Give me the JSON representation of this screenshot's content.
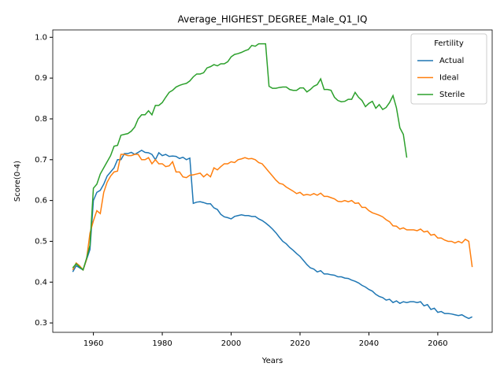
{
  "chart_data": {
    "type": "line",
    "title": "Average_HIGHEST_DEGREE_Male_Q1_IQ",
    "x_label": "Years",
    "y_label": "Score(0-4)",
    "x": [
      1954,
      1955,
      1956,
      1957,
      1958,
      1959,
      1960,
      1961,
      1962,
      1963,
      1964,
      1965,
      1966,
      1967,
      1968,
      1969,
      1970,
      1971,
      1972,
      1973,
      1974,
      1975,
      1976,
      1977,
      1978,
      1979,
      1980,
      1981,
      1982,
      1983,
      1984,
      1985,
      1986,
      1987,
      1988,
      1989,
      1990,
      1991,
      1992,
      1993,
      1994,
      1995,
      1996,
      1997,
      1998,
      1999,
      2000,
      2001,
      2002,
      2003,
      2004,
      2005,
      2006,
      2007,
      2008,
      2009,
      2010,
      2011,
      2012,
      2013,
      2014,
      2015,
      2016,
      2017,
      2018,
      2019,
      2020,
      2021,
      2022,
      2023,
      2024,
      2025,
      2026,
      2027,
      2028,
      2029,
      2030,
      2031,
      2032,
      2033,
      2034,
      2035,
      2036,
      2037,
      2038,
      2039,
      2040,
      2041,
      2042,
      2043,
      2044,
      2045,
      2046,
      2047,
      2048,
      2049,
      2050,
      2051,
      2052,
      2053,
      2054,
      2055,
      2056,
      2057,
      2058,
      2059,
      2060,
      2061,
      2062,
      2063,
      2064,
      2065,
      2066,
      2067,
      2068,
      2069,
      2070
    ],
    "series": [
      {
        "name": "Actual",
        "color": "#1f77b4",
        "values": [
          0.425,
          0.44,
          0.435,
          0.43,
          0.455,
          0.48,
          0.6,
          0.62,
          0.625,
          0.64,
          0.66,
          0.67,
          0.68,
          0.7,
          0.7,
          0.715,
          0.715,
          0.718,
          0.713,
          0.718,
          0.723,
          0.718,
          0.717,
          0.713,
          0.7,
          0.717,
          0.71,
          0.713,
          0.708,
          0.709,
          0.708,
          0.703,
          0.706,
          0.7,
          0.704,
          0.593,
          0.596,
          0.597,
          0.595,
          0.592,
          0.592,
          0.582,
          0.578,
          0.566,
          0.56,
          0.558,
          0.555,
          0.561,
          0.563,
          0.565,
          0.563,
          0.563,
          0.561,
          0.561,
          0.555,
          0.551,
          0.545,
          0.538,
          0.53,
          0.521,
          0.51,
          0.5,
          0.494,
          0.485,
          0.478,
          0.47,
          0.463,
          0.453,
          0.443,
          0.435,
          0.432,
          0.425,
          0.428,
          0.42,
          0.42,
          0.418,
          0.417,
          0.413,
          0.413,
          0.41,
          0.409,
          0.405,
          0.402,
          0.398,
          0.392,
          0.388,
          0.382,
          0.378,
          0.37,
          0.365,
          0.362,
          0.356,
          0.358,
          0.35,
          0.354,
          0.348,
          0.352,
          0.35,
          0.352,
          0.352,
          0.35,
          0.352,
          0.342,
          0.345,
          0.333,
          0.336,
          0.326,
          0.328,
          0.323,
          0.323,
          0.322,
          0.32,
          0.318,
          0.32,
          0.315,
          0.311,
          0.315
        ]
      },
      {
        "name": "Ideal",
        "color": "#ff7f0e",
        "values": [
          0.43,
          0.447,
          0.44,
          0.43,
          0.455,
          0.52,
          0.55,
          0.575,
          0.568,
          0.62,
          0.645,
          0.66,
          0.67,
          0.672,
          0.713,
          0.713,
          0.71,
          0.71,
          0.713,
          0.713,
          0.7,
          0.7,
          0.705,
          0.69,
          0.7,
          0.69,
          0.69,
          0.683,
          0.685,
          0.695,
          0.67,
          0.67,
          0.658,
          0.656,
          0.662,
          0.663,
          0.665,
          0.667,
          0.658,
          0.665,
          0.658,
          0.68,
          0.675,
          0.683,
          0.69,
          0.69,
          0.695,
          0.693,
          0.7,
          0.702,
          0.705,
          0.702,
          0.703,
          0.7,
          0.693,
          0.69,
          0.68,
          0.67,
          0.66,
          0.65,
          0.642,
          0.64,
          0.633,
          0.628,
          0.623,
          0.617,
          0.62,
          0.613,
          0.615,
          0.613,
          0.617,
          0.613,
          0.618,
          0.61,
          0.61,
          0.607,
          0.604,
          0.598,
          0.597,
          0.6,
          0.597,
          0.6,
          0.593,
          0.594,
          0.583,
          0.583,
          0.575,
          0.57,
          0.567,
          0.564,
          0.56,
          0.553,
          0.548,
          0.538,
          0.537,
          0.53,
          0.533,
          0.528,
          0.528,
          0.528,
          0.526,
          0.53,
          0.523,
          0.525,
          0.515,
          0.517,
          0.508,
          0.508,
          0.503,
          0.5,
          0.5,
          0.496,
          0.5,
          0.496,
          0.505,
          0.5,
          0.437
        ]
      },
      {
        "name": "Sterile",
        "color": "#2ca02c",
        "values": [
          0.435,
          0.445,
          0.437,
          0.43,
          0.458,
          0.49,
          0.63,
          0.64,
          0.665,
          0.68,
          0.695,
          0.71,
          0.733,
          0.735,
          0.76,
          0.762,
          0.764,
          0.77,
          0.78,
          0.8,
          0.81,
          0.81,
          0.82,
          0.81,
          0.833,
          0.833,
          0.84,
          0.853,
          0.865,
          0.87,
          0.878,
          0.882,
          0.885,
          0.887,
          0.893,
          0.903,
          0.91,
          0.91,
          0.913,
          0.925,
          0.928,
          0.933,
          0.93,
          0.935,
          0.935,
          0.94,
          0.952,
          0.958,
          0.96,
          0.963,
          0.967,
          0.97,
          0.98,
          0.978,
          0.984,
          0.984,
          0.984,
          0.88,
          0.875,
          0.875,
          0.877,
          0.878,
          0.878,
          0.872,
          0.87,
          0.87,
          0.876,
          0.876,
          0.866,
          0.872,
          0.88,
          0.884,
          0.898,
          0.872,
          0.872,
          0.87,
          0.853,
          0.845,
          0.842,
          0.843,
          0.848,
          0.848,
          0.865,
          0.853,
          0.845,
          0.83,
          0.838,
          0.843,
          0.826,
          0.835,
          0.823,
          0.828,
          0.84,
          0.857,
          0.827,
          0.778,
          0.762,
          0.705,
          null,
          null,
          null,
          null,
          null,
          null,
          null,
          null,
          null,
          null,
          null,
          null,
          null,
          null,
          null,
          null,
          null,
          null,
          null
        ]
      }
    ],
    "xlim": [
      1948.2,
      2075.8
    ],
    "ylim": [
      0.277,
      1.018
    ],
    "xticks": [
      1960,
      1980,
      2000,
      2020,
      2040,
      2060
    ],
    "yticks": [
      {
        "value": 0.3,
        "label": "0.3"
      },
      {
        "value": 0.4,
        "label": "0.4"
      },
      {
        "value": 0.5,
        "label": "0.5"
      },
      {
        "value": 0.6,
        "label": "0.6"
      },
      {
        "value": 0.7,
        "label": "0.7"
      },
      {
        "value": 0.8,
        "label": "0.8"
      },
      {
        "value": 0.9,
        "label": "0.9"
      },
      {
        "value": 1.0,
        "label": "1.0"
      }
    ],
    "grid": false,
    "legend_title": "Fertility",
    "legend_position": "upper right"
  }
}
